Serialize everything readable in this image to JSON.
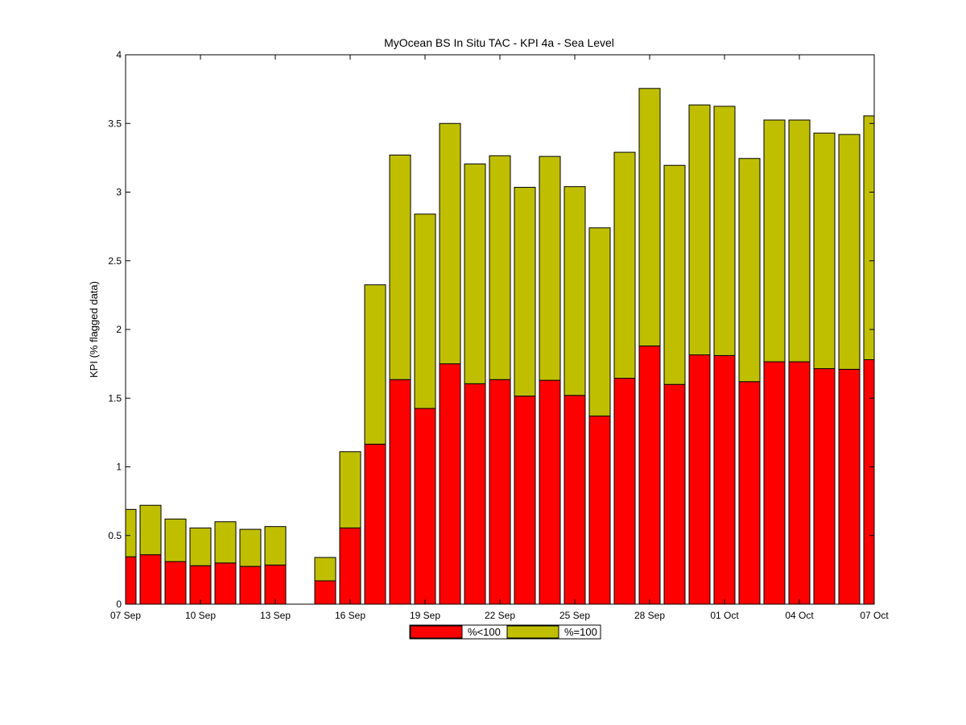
{
  "chart_data": {
    "type": "bar",
    "stacked": true,
    "title": "MyOcean  BS In Situ TAC - KPI 4a - Sea Level",
    "xlabel": "",
    "ylabel": "KPI (% flagged data)",
    "ylim": [
      0,
      4
    ],
    "yticks": [
      "0",
      "0.5",
      "1",
      "1.5",
      "2",
      "2.5",
      "3",
      "3.5",
      "4"
    ],
    "x_tick_labels": [
      "07 Sep",
      "10 Sep",
      "13 Sep",
      "16 Sep",
      "19 Sep",
      "22 Sep",
      "25 Sep",
      "28 Sep",
      "01 Oct",
      "04 Oct",
      "07 Oct"
    ],
    "x": [
      "07 Sep",
      "08 Sep",
      "09 Sep",
      "10 Sep",
      "11 Sep",
      "12 Sep",
      "13 Sep",
      "14 Sep",
      "15 Sep",
      "16 Sep",
      "17 Sep",
      "18 Sep",
      "19 Sep",
      "20 Sep",
      "21 Sep",
      "22 Sep",
      "23 Sep",
      "24 Sep",
      "25 Sep",
      "26 Sep",
      "27 Sep",
      "28 Sep",
      "29 Sep",
      "30 Sep",
      "01 Oct",
      "02 Oct",
      "03 Oct",
      "04 Oct",
      "05 Oct",
      "06 Oct",
      "07 Oct"
    ],
    "series": [
      {
        "name": "%<100",
        "color": "#ff0000",
        "values": [
          0.345,
          0.36,
          0.31,
          0.28,
          0.3,
          0.275,
          0.285,
          null,
          0.17,
          0.555,
          1.165,
          1.635,
          1.425,
          1.75,
          1.605,
          1.635,
          1.515,
          1.63,
          1.52,
          1.37,
          1.645,
          1.88,
          1.6,
          1.815,
          1.81,
          1.62,
          1.765,
          1.765,
          1.715,
          1.71,
          1.78
        ]
      },
      {
        "name": "%=100",
        "color": "#bfbf00",
        "values": [
          0.345,
          0.36,
          0.31,
          0.275,
          0.3,
          0.27,
          0.28,
          null,
          0.17,
          0.555,
          1.16,
          1.635,
          1.415,
          1.75,
          1.6,
          1.63,
          1.52,
          1.63,
          1.52,
          1.37,
          1.645,
          1.875,
          1.595,
          1.82,
          1.815,
          1.625,
          1.76,
          1.76,
          1.715,
          1.71,
          1.775
        ]
      }
    ],
    "grid": false,
    "legend_position": "bottom-center"
  }
}
